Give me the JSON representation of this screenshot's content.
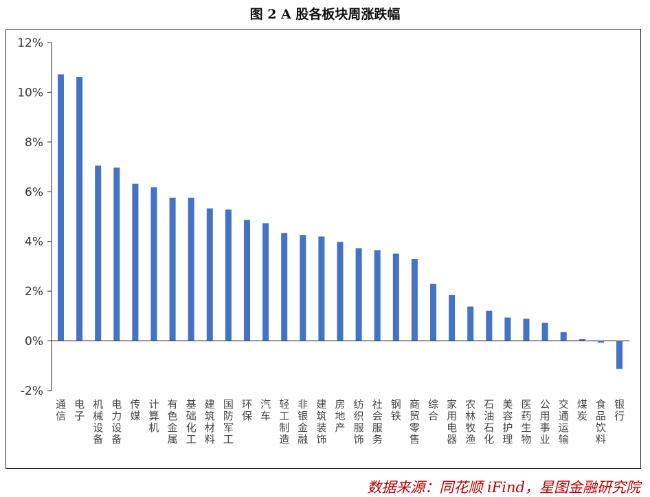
{
  "title": "图 2 A 股各板块周涨跌幅",
  "source": "数据来源：同花顺 iFind，星图金融研究院",
  "colors": {
    "bar": "#4472C4",
    "axis": "#222222",
    "source": "#c00000"
  },
  "chart_data": {
    "type": "bar",
    "title": "图 2 A 股各板块周涨跌幅",
    "xlabel": "",
    "ylabel": "",
    "ylim": [
      -2,
      12
    ],
    "yticks": [
      -2,
      0,
      2,
      4,
      6,
      8,
      10,
      12
    ],
    "ytick_labels": [
      "-2%",
      "0%",
      "2%",
      "4%",
      "6%",
      "8%",
      "10%",
      "12%"
    ],
    "grid": false,
    "legend": "none",
    "categories": [
      "通信",
      "电子",
      "机械设备",
      "电力设备",
      "传媒",
      "计算机",
      "有色金属",
      "基础化工",
      "建筑材料",
      "国防军工",
      "环保",
      "汽车",
      "轻工制造",
      "非银金融",
      "建筑装饰",
      "房地产",
      "纺织服饰",
      "社会服务",
      "钢铁",
      "商贸零售",
      "综合",
      "家用电器",
      "农林牧渔",
      "石油石化",
      "美容护理",
      "医药生物",
      "公用事业",
      "交通运输",
      "煤炭",
      "食品饮料",
      "银行"
    ],
    "values": [
      10.72,
      10.62,
      7.05,
      6.97,
      6.32,
      6.18,
      5.76,
      5.76,
      5.33,
      5.28,
      4.87,
      4.73,
      4.34,
      4.26,
      4.2,
      3.98,
      3.73,
      3.65,
      3.51,
      3.3,
      2.29,
      1.84,
      1.38,
      1.21,
      0.94,
      0.89,
      0.73,
      0.35,
      0.07,
      -0.07,
      -1.13
    ]
  }
}
